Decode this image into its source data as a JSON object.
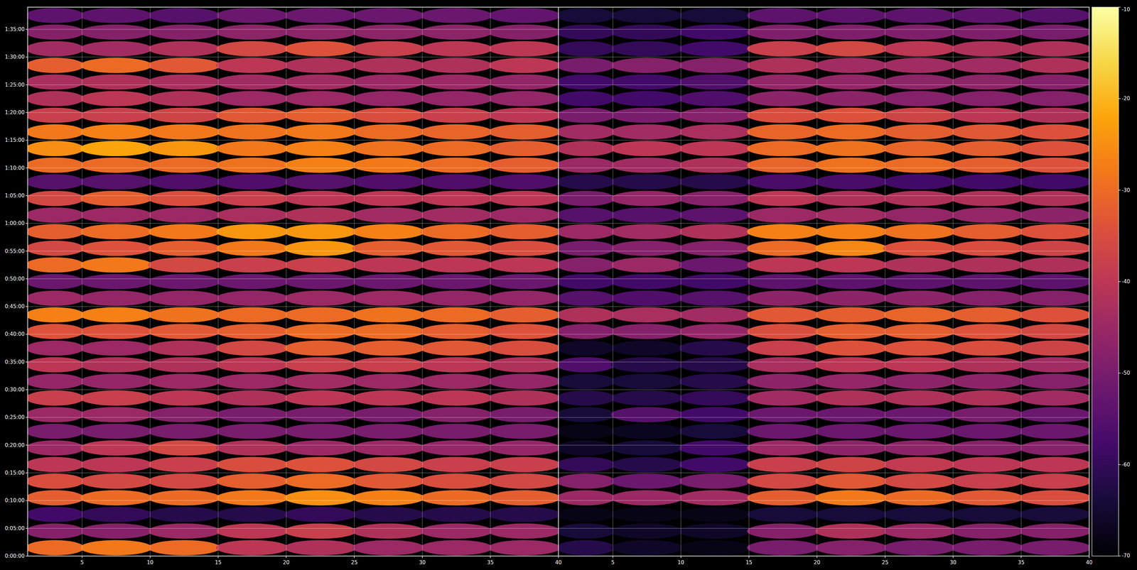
{
  "chart_data": [
    {
      "type": "heatmap",
      "x_edges": [
        1,
        5,
        10,
        15,
        20,
        25,
        30,
        35,
        40
      ],
      "y_edges": [
        0,
        180,
        360,
        540,
        720,
        900,
        1080,
        1260,
        1440,
        1620,
        1800,
        1980,
        2160,
        2340,
        2520,
        2700,
        2880,
        3060,
        3240,
        3420,
        3600,
        3780,
        3960,
        4140,
        4320,
        4500,
        4680,
        4860,
        5040,
        5220,
        5400,
        5580,
        5760,
        5940
      ],
      "xlim": [
        1,
        40
      ],
      "xticks": [
        5,
        10,
        15,
        20,
        25,
        30,
        35,
        40
      ],
      "ylim": [
        0,
        5940
      ],
      "yticks": [
        {
          "value": 0,
          "label": "0:00:00"
        },
        {
          "value": 300,
          "label": "0:05:00"
        },
        {
          "value": 600,
          "label": "0:10:00"
        },
        {
          "value": 900,
          "label": "0:15:00"
        },
        {
          "value": 1200,
          "label": "0:20:00"
        },
        {
          "value": 1500,
          "label": "0:25:00"
        },
        {
          "value": 1800,
          "label": "0:30:00"
        },
        {
          "value": 2100,
          "label": "0:35:00"
        },
        {
          "value": 2400,
          "label": "0:40:00"
        },
        {
          "value": 2700,
          "label": "0:45:00"
        },
        {
          "value": 3000,
          "label": "0:50:00"
        },
        {
          "value": 3300,
          "label": "0:55:00"
        },
        {
          "value": 3600,
          "label": "1:00:00"
        },
        {
          "value": 3900,
          "label": "1:05:00"
        },
        {
          "value": 4200,
          "label": "1:10:00"
        },
        {
          "value": 4500,
          "label": "1:15:00"
        },
        {
          "value": 4800,
          "label": "1:20:00"
        },
        {
          "value": 5100,
          "label": "1:25:00"
        },
        {
          "value": 5400,
          "label": "1:30:00"
        },
        {
          "value": 5700,
          "label": "1:35:00"
        }
      ],
      "grid": true,
      "tick_labels": true,
      "values": [
        [
          -30,
          -28,
          -30,
          -40,
          -42,
          -45,
          -45,
          -45
        ],
        [
          -48,
          -48,
          -45,
          -40,
          -38,
          -42,
          -45,
          -45
        ],
        [
          -58,
          -60,
          -62,
          -62,
          -60,
          -62,
          -62,
          -62
        ],
        [
          -32,
          -30,
          -30,
          -28,
          -25,
          -27,
          -30,
          -32
        ],
        [
          -35,
          -36,
          -36,
          -32,
          -30,
          -33,
          -35,
          -36
        ],
        [
          -40,
          -40,
          -38,
          -35,
          -34,
          -36,
          -38,
          -38
        ],
        [
          -45,
          -40,
          -36,
          -42,
          -45,
          -45,
          -46,
          -46
        ],
        [
          -50,
          -50,
          -50,
          -50,
          -50,
          -50,
          -50,
          -50
        ],
        [
          -45,
          -45,
          -48,
          -50,
          -50,
          -50,
          -48,
          -50
        ],
        [
          -38,
          -38,
          -40,
          -42,
          -40,
          -40,
          -40,
          -42
        ],
        [
          -46,
          -46,
          -45,
          -45,
          -44,
          -45,
          -45,
          -46
        ],
        [
          -40,
          -42,
          -42,
          -40,
          -38,
          -38,
          -40,
          -42
        ],
        [
          -45,
          -45,
          -42,
          -36,
          -32,
          -32,
          -33,
          -35
        ],
        [
          -34,
          -34,
          -33,
          -32,
          -30,
          -30,
          -32,
          -34
        ],
        [
          -27,
          -27,
          -29,
          -30,
          -30,
          -29,
          -30,
          -32
        ],
        [
          -45,
          -46,
          -46,
          -46,
          -45,
          -45,
          -46,
          -46
        ],
        [
          -52,
          -52,
          -52,
          -52,
          -52,
          -52,
          -52,
          -52
        ],
        [
          -30,
          -28,
          -36,
          -38,
          -38,
          -40,
          -40,
          -40
        ],
        [
          -36,
          -34,
          -32,
          -28,
          -24,
          -32,
          -33,
          -35
        ],
        [
          -32,
          -30,
          -28,
          -24,
          -24,
          -27,
          -30,
          -32
        ],
        [
          -45,
          -45,
          -45,
          -43,
          -42,
          -44,
          -44,
          -45
        ],
        [
          -36,
          -32,
          -35,
          -38,
          -40,
          -40,
          -40,
          -40
        ],
        [
          -55,
          -55,
          -56,
          -56,
          -55,
          -56,
          -56,
          -56
        ],
        [
          -30,
          -30,
          -30,
          -29,
          -27,
          -28,
          -30,
          -32
        ],
        [
          -25,
          -22,
          -24,
          -28,
          -27,
          -29,
          -30,
          -32
        ],
        [
          -28,
          -27,
          -28,
          -29,
          -28,
          -30,
          -31,
          -32
        ],
        [
          -38,
          -38,
          -37,
          -33,
          -32,
          -35,
          -38,
          -40
        ],
        [
          -42,
          -40,
          -42,
          -45,
          -45,
          -46,
          -46,
          -46
        ],
        [
          -43,
          -42,
          -43,
          -44,
          -44,
          -45,
          -45,
          -46
        ],
        [
          -32,
          -30,
          -33,
          -40,
          -42,
          -42,
          -42,
          -40
        ],
        [
          -44,
          -44,
          -42,
          -36,
          -34,
          -38,
          -40,
          -40
        ],
        [
          -48,
          -48,
          -48,
          -47,
          -47,
          -47,
          -47,
          -48
        ],
        [
          -54,
          -54,
          -55,
          -52,
          -52,
          -52,
          -52,
          -53
        ]
      ]
    },
    {
      "type": "heatmap",
      "x_edges": [
        1,
        5,
        10,
        15,
        20,
        25,
        30,
        35,
        40
      ],
      "y_edges": [
        0,
        180,
        360,
        540,
        720,
        900,
        1080,
        1260,
        1440,
        1620,
        1800,
        1980,
        2160,
        2340,
        2520,
        2700,
        2880,
        3060,
        3240,
        3420,
        3600,
        3780,
        3960,
        4140,
        4320,
        4500,
        4680,
        4860,
        5040,
        5220,
        5400,
        5580,
        5760,
        5940
      ],
      "xlim": [
        1,
        40
      ],
      "xticks": [
        5,
        10,
        15,
        20,
        25,
        30,
        35,
        40
      ],
      "ylim": [
        0,
        5940
      ],
      "yticks": [
        0,
        300,
        600,
        900,
        1200,
        1500,
        1800,
        2100,
        2400,
        2700,
        3000,
        3300,
        3600,
        3900,
        4200,
        4500,
        4800,
        5100,
        5400,
        5700
      ],
      "grid": true,
      "tick_labels": "x",
      "values": [
        [
          -62,
          -66,
          -68,
          -50,
          -48,
          -50,
          -50,
          -50
        ],
        [
          -64,
          -66,
          -66,
          -48,
          -42,
          -45,
          -48,
          -48
        ],
        [
          -68,
          -68,
          -68,
          -64,
          -64,
          -64,
          -64,
          -64
        ],
        [
          -45,
          -45,
          -44,
          -32,
          -28,
          -30,
          -33,
          -35
        ],
        [
          -48,
          -52,
          -50,
          -36,
          -33,
          -36,
          -38,
          -38
        ],
        [
          -60,
          -62,
          -58,
          -38,
          -37,
          -39,
          -40,
          -40
        ],
        [
          -66,
          -64,
          -58,
          -45,
          -47,
          -47,
          -48,
          -48
        ],
        [
          -68,
          -67,
          -64,
          -52,
          -52,
          -52,
          -52,
          -52
        ],
        [
          -64,
          -55,
          -58,
          -52,
          -52,
          -52,
          -50,
          -52
        ],
        [
          -62,
          -62,
          -60,
          -44,
          -42,
          -42,
          -42,
          -44
        ],
        [
          -64,
          -64,
          -62,
          -47,
          -46,
          -47,
          -47,
          -48
        ],
        [
          -56,
          -62,
          -62,
          -43,
          -40,
          -40,
          -42,
          -44
        ],
        [
          -66,
          -66,
          -62,
          -38,
          -34,
          -34,
          -35,
          -37
        ],
        [
          -48,
          -48,
          -46,
          -35,
          -32,
          -32,
          -34,
          -36
        ],
        [
          -42,
          -43,
          -44,
          -33,
          -32,
          -31,
          -32,
          -34
        ],
        [
          -55,
          -56,
          -55,
          -47,
          -47,
          -47,
          -48,
          -48
        ],
        [
          -58,
          -58,
          -58,
          -54,
          -54,
          -54,
          -54,
          -54
        ],
        [
          -48,
          -45,
          -52,
          -40,
          -40,
          -42,
          -42,
          -42
        ],
        [
          -50,
          -48,
          -48,
          -30,
          -26,
          -34,
          -35,
          -37
        ],
        [
          -45,
          -44,
          -42,
          -27,
          -27,
          -29,
          -32,
          -34
        ],
        [
          -55,
          -55,
          -54,
          -45,
          -44,
          -46,
          -46,
          -47
        ],
        [
          -50,
          -46,
          -48,
          -40,
          -42,
          -42,
          -42,
          -42
        ],
        [
          -62,
          -62,
          -62,
          -57,
          -57,
          -58,
          -58,
          -58
        ],
        [
          -45,
          -44,
          -42,
          -31,
          -29,
          -30,
          -32,
          -34
        ],
        [
          -42,
          -40,
          -40,
          -30,
          -29,
          -31,
          -32,
          -34
        ],
        [
          -44,
          -44,
          -43,
          -31,
          -30,
          -32,
          -33,
          -34
        ],
        [
          -50,
          -50,
          -48,
          -35,
          -34,
          -37,
          -40,
          -42
        ],
        [
          -58,
          -58,
          -56,
          -47,
          -47,
          -48,
          -48,
          -48
        ],
        [
          -58,
          -58,
          -56,
          -46,
          -46,
          -47,
          -47,
          -48
        ],
        [
          -50,
          -48,
          -48,
          -42,
          -44,
          -44,
          -44,
          -42
        ],
        [
          -60,
          -60,
          -58,
          -38,
          -36,
          -40,
          -42,
          -42
        ],
        [
          -60,
          -60,
          -58,
          -49,
          -49,
          -49,
          -49,
          -50
        ],
        [
          -64,
          -64,
          -64,
          -54,
          -54,
          -54,
          -54,
          -55
        ]
      ],
      "colorbar": {
        "range": [
          -70,
          -10
        ],
        "ticks": [
          -70,
          -60,
          -50,
          -40,
          -30,
          -20,
          -10
        ]
      }
    }
  ]
}
